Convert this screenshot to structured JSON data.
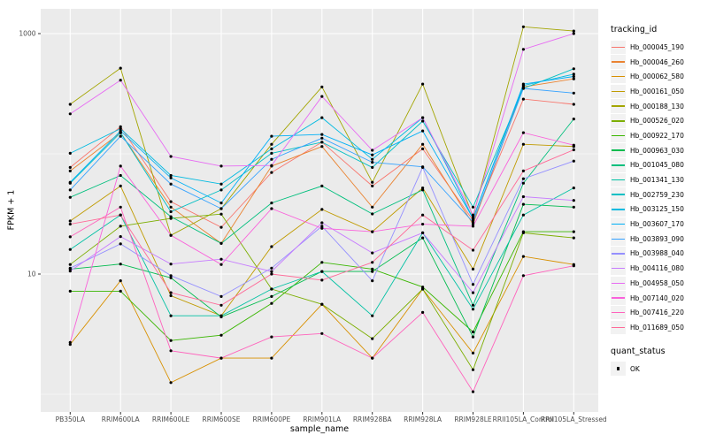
{
  "panel": {
    "background": "#EBEBEB",
    "grid_color": "#FFFFFF"
  },
  "axis": {
    "x_title": "sample_name",
    "y_title": "FPKM + 1",
    "tick_text_color": "#4D4D4D",
    "tick_mark_color": "#333333"
  },
  "legend": {
    "tracking_title": "tracking_id",
    "quant_title": "quant_status",
    "quant_ok_label": "OK",
    "key_background": "#F2F2F2",
    "ok_marker_color": "#000000"
  },
  "chart_data": {
    "type": "line",
    "title": "",
    "xlabel": "sample_name",
    "ylabel": "FPKM + 1",
    "y_scale": "log10",
    "y_major_breaks": [
      10,
      1000
    ],
    "y_minor_breaks": [
      1,
      100
    ],
    "ylim": [
      1,
      1200
    ],
    "grid": true,
    "legend_position": "right",
    "point_color": "#000000",
    "quant_status": "OK",
    "categories": [
      "PB350LA",
      "RRIM600LA",
      "RRIM600LE",
      "RRIM600SE",
      "RRIM600PE",
      "RRIM901LA",
      "RRIM928BA",
      "RRIM928LA",
      "RRIM928LE",
      "RRII105LA_Control",
      "RRII105LA_Stressed"
    ],
    "series": [
      {
        "name": "Hb_000045_190",
        "color": "#F8766D",
        "values": [
          77,
          168,
          40,
          24.5,
          70,
          125,
          54,
          110,
          28,
          285,
          258
        ]
      },
      {
        "name": "Hb_000046_260",
        "color": "#EA8331",
        "values": [
          72,
          150,
          36,
          18,
          79,
          115,
          36,
          120,
          26,
          360,
          420
        ]
      },
      {
        "name": "Hb_000062_580",
        "color": "#D89000",
        "values": [
          2.6,
          8.8,
          1.25,
          2.0,
          2.0,
          5.6,
          2.0,
          7.5,
          2.2,
          14,
          12
        ]
      },
      {
        "name": "Hb_000161_050",
        "color": "#C09B00",
        "values": [
          27.6,
          54,
          6.6,
          4.5,
          16.9,
          34.5,
          22.5,
          52,
          11,
          120,
          115
        ]
      },
      {
        "name": "Hb_000188_130",
        "color": "#A3A500",
        "values": [
          258,
          516,
          21,
          35,
          120,
          360,
          58,
          380,
          30,
          1140,
          1050
        ]
      },
      {
        "name": "Hb_000526_020",
        "color": "#7CAE00",
        "values": [
          12,
          25,
          29,
          31.5,
          7.5,
          5.6,
          2.9,
          7.5,
          1.6,
          22,
          20
        ]
      },
      {
        "name": "Hb_000922_170",
        "color": "#39B600",
        "values": [
          7.2,
          7.2,
          2.8,
          3.1,
          5.7,
          12.5,
          11,
          7.8,
          3.3,
          22.5,
          22.5
        ]
      },
      {
        "name": "Hb_000963_030",
        "color": "#00BB4E",
        "values": [
          11,
          12.1,
          9.3,
          4.4,
          6.5,
          10.5,
          10.5,
          20,
          3.0,
          38,
          36
        ]
      },
      {
        "name": "Hb_001045_080",
        "color": "#00BF7D",
        "values": [
          43.5,
          66,
          30,
          18,
          39,
          54,
          31.6,
          50,
          5.5,
          57,
          195
        ]
      },
      {
        "name": "Hb_001341_130",
        "color": "#00C1A3",
        "values": [
          16,
          31,
          4.5,
          4.5,
          7.5,
          10.5,
          4.5,
          22,
          5.1,
          31,
          52
        ]
      },
      {
        "name": "Hb_002759_230",
        "color": "#00BFC4",
        "values": [
          57,
          150,
          33,
          50,
          101,
          125,
          77,
          187,
          36,
          350,
          510
        ]
      },
      {
        "name": "Hb_003125_150",
        "color": "#00BAE0",
        "values": [
          101,
          162,
          66,
          56,
          110,
          200,
          90,
          200,
          29,
          370,
          460
        ]
      },
      {
        "name": "Hb_003607_170",
        "color": "#00B0F6",
        "values": [
          58,
          155,
          63,
          39,
          140,
          145,
          98,
          155,
          29,
          380,
          440
        ]
      },
      {
        "name": "Hb_003893_090",
        "color": "#35A2FF",
        "values": [
          50,
          140,
          56,
          35,
          90,
          135,
          85,
          78,
          27,
          350,
          320
        ]
      },
      {
        "name": "Hb_003988_040",
        "color": "#9590FF",
        "values": [
          11.2,
          17.8,
          9.7,
          6.5,
          11.2,
          25,
          8.8,
          77,
          8.2,
          62,
          87
        ]
      },
      {
        "name": "Hb_004116_080",
        "color": "#C77CFF",
        "values": [
          10.6,
          20.5,
          12.1,
          13.3,
          10.5,
          26.7,
          15,
          22,
          7.0,
          44,
          41
        ]
      },
      {
        "name": "Hb_004958_050",
        "color": "#E76BF3",
        "values": [
          215,
          410,
          95,
          79,
          80,
          300,
          107,
          200,
          31,
          740,
          1000
        ]
      },
      {
        "name": "Hb_007140_020",
        "color": "#FA62DB",
        "values": [
          2.7,
          79,
          21,
          12,
          35,
          24,
          22.5,
          26,
          25,
          150,
          118
        ]
      },
      {
        "name": "Hb_007416_220",
        "color": "#FF62BC",
        "values": [
          20.4,
          36,
          2.3,
          2.0,
          3.0,
          3.2,
          2.0,
          4.8,
          1.05,
          9.7,
          11.7
        ]
      },
      {
        "name": "Hb_011689_050",
        "color": "#FF6A98",
        "values": [
          26,
          31,
          7.0,
          5.5,
          10,
          8.9,
          12.5,
          31,
          15.8,
          72,
          108
        ]
      }
    ]
  }
}
